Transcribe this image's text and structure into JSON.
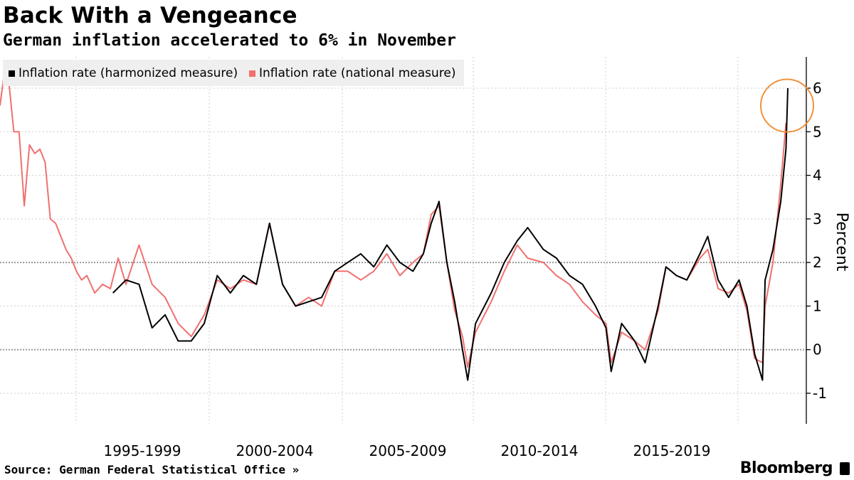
{
  "header": {
    "title": "Back With a Vengeance",
    "subtitle": "German inflation accelerated to 6% in November"
  },
  "footer": {
    "source": "Source: German Federal Statistical Office »",
    "brand": "Bloomberg"
  },
  "colors": {
    "harmonized": "#000000",
    "national": "#f07070",
    "highlight_circle": "#f0923b",
    "grid": "#cccccc"
  },
  "chart_data": {
    "type": "line",
    "title": "Back With a Vengeance",
    "subtitle": "German inflation accelerated to 6% in November",
    "ylabel": "Percent",
    "xlabel": "",
    "ylim": [
      -1.7,
      6.7
    ],
    "xlim": [
      1991.67,
      2022.0
    ],
    "yticks": [
      -1,
      0,
      1,
      2,
      3,
      4,
      5,
      6
    ],
    "xtick_labels": [
      "1995-1999",
      "2000-2004",
      "2005-2009",
      "2010-2014",
      "2015-2019"
    ],
    "grid": true,
    "legend_position": "top-left",
    "annotations": [
      "circle around November 2021 value of 6%"
    ],
    "series": [
      {
        "name": "Inflation rate (harmonized measure)",
        "x": [
          1996.0,
          1996.5,
          1997.0,
          1997.5,
          1998.0,
          1998.5,
          1999.0,
          1999.5,
          2000.0,
          2000.5,
          2001.0,
          2001.5,
          2002.0,
          2002.5,
          2003.0,
          2003.5,
          2004.0,
          2004.5,
          2005.0,
          2005.5,
          2006.0,
          2006.5,
          2007.0,
          2007.5,
          2007.9,
          2008.2,
          2008.5,
          2008.8,
          2009.1,
          2009.4,
          2009.6,
          2009.9,
          2010.5,
          2011.0,
          2011.5,
          2011.9,
          2012.5,
          2013.0,
          2013.5,
          2014.0,
          2014.5,
          2014.9,
          2015.1,
          2015.5,
          2016.0,
          2016.4,
          2016.9,
          2017.2,
          2017.6,
          2018.0,
          2018.5,
          2018.8,
          2019.2,
          2019.6,
          2020.0,
          2020.3,
          2020.6,
          2020.9,
          2021.0,
          2021.3,
          2021.6,
          2021.8,
          2021.87
        ],
        "values": [
          1.3,
          1.6,
          1.5,
          0.5,
          0.8,
          0.2,
          0.2,
          0.6,
          1.7,
          1.3,
          1.7,
          1.5,
          2.9,
          1.5,
          1.0,
          1.1,
          1.2,
          1.8,
          2.0,
          2.2,
          1.9,
          2.4,
          2.0,
          1.8,
          2.2,
          2.9,
          3.4,
          2.0,
          1.1,
          0.0,
          -0.7,
          0.6,
          1.3,
          2.0,
          2.5,
          2.8,
          2.3,
          2.1,
          1.7,
          1.5,
          1.0,
          0.5,
          -0.5,
          0.6,
          0.2,
          -0.3,
          1.0,
          1.9,
          1.7,
          1.6,
          2.2,
          2.6,
          1.6,
          1.2,
          1.6,
          1.0,
          -0.1,
          -0.7,
          1.6,
          2.3,
          3.4,
          4.6,
          6.0
        ]
      },
      {
        "name": "Inflation rate (national measure)",
        "x": [
          1991.67,
          1991.8,
          1992.0,
          1992.2,
          1992.4,
          1992.6,
          1992.8,
          1993.0,
          1993.2,
          1993.4,
          1993.6,
          1993.8,
          1994.0,
          1994.2,
          1994.4,
          1994.6,
          1994.8,
          1995.0,
          1995.3,
          1995.6,
          1995.9,
          1996.2,
          1996.5,
          1997.0,
          1997.5,
          1998.0,
          1998.5,
          1999.0,
          1999.5,
          2000.0,
          2000.5,
          2001.0,
          2001.5,
          2002.0,
          2002.5,
          2003.0,
          2003.5,
          2004.0,
          2004.5,
          2005.0,
          2005.5,
          2006.0,
          2006.5,
          2007.0,
          2007.5,
          2007.9,
          2008.2,
          2008.5,
          2008.8,
          2009.1,
          2009.4,
          2009.6,
          2009.9,
          2010.5,
          2011.0,
          2011.5,
          2011.9,
          2012.5,
          2013.0,
          2013.5,
          2014.0,
          2014.5,
          2014.9,
          2015.1,
          2015.5,
          2016.0,
          2016.4,
          2016.9,
          2017.2,
          2017.6,
          2018.0,
          2018.5,
          2018.8,
          2019.2,
          2019.6,
          2020.0,
          2020.3,
          2020.6,
          2020.9,
          2021.0,
          2021.3,
          2021.6,
          2021.8
        ],
        "values": [
          5.6,
          6.2,
          6.2,
          5.0,
          5.0,
          3.3,
          4.7,
          4.5,
          4.6,
          4.3,
          3.0,
          2.9,
          2.6,
          2.3,
          2.1,
          1.8,
          1.6,
          1.7,
          1.3,
          1.5,
          1.4,
          2.1,
          1.5,
          2.4,
          1.5,
          1.2,
          0.6,
          0.3,
          0.8,
          1.6,
          1.4,
          1.6,
          1.5,
          2.9,
          1.5,
          1.0,
          1.2,
          1.0,
          1.8,
          1.8,
          1.6,
          1.8,
          2.2,
          1.7,
          2.0,
          2.2,
          3.1,
          3.3,
          2.0,
          0.9,
          0.3,
          -0.4,
          0.4,
          1.1,
          1.8,
          2.4,
          2.1,
          2.0,
          1.7,
          1.5,
          1.1,
          0.8,
          0.6,
          -0.3,
          0.4,
          0.2,
          0.0,
          0.9,
          1.9,
          1.7,
          1.6,
          2.1,
          2.3,
          1.4,
          1.3,
          1.5,
          0.9,
          -0.2,
          -0.3,
          1.0,
          2.0,
          3.8,
          5.2
        ]
      }
    ]
  }
}
